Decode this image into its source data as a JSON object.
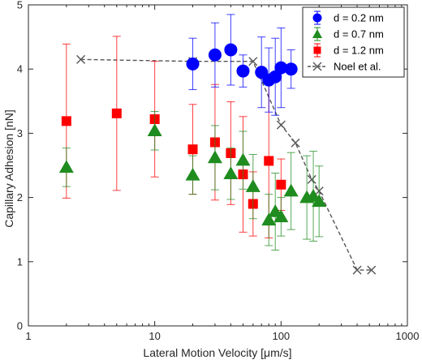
{
  "chart_data": {
    "type": "scatter",
    "xlabel": "Lateral Motion Velocity [μm/s]",
    "ylabel": "Capillary Adhesion [nN]",
    "xscale": "log",
    "xlim": [
      1,
      1000
    ],
    "ylim": [
      0,
      5
    ],
    "x_ticks": [
      1,
      10,
      100,
      1000
    ],
    "x_tick_labels": [
      "1",
      "10",
      "100",
      "1000"
    ],
    "y_ticks": [
      0,
      1,
      2,
      3,
      4,
      5
    ],
    "y_tick_labels": [
      "0",
      "1",
      "2",
      "3",
      "4",
      "5"
    ],
    "grid": false,
    "legend_position": "top-right",
    "series": [
      {
        "name": "d = 0.2 nm",
        "marker": "circle",
        "color": "#0000ff",
        "points": [
          {
            "x": 20,
            "y": 4.08,
            "err": 0.4
          },
          {
            "x": 30,
            "y": 4.22,
            "err": 0.5
          },
          {
            "x": 40,
            "y": 4.3,
            "err": 0.55
          },
          {
            "x": 50,
            "y": 3.97,
            "err": 0.25
          },
          {
            "x": 70,
            "y": 3.95,
            "err": 0.55
          },
          {
            "x": 80,
            "y": 3.83,
            "err": 0.5
          },
          {
            "x": 90,
            "y": 3.88,
            "err": 0.6
          },
          {
            "x": 100,
            "y": 4.02,
            "err": 0.62
          },
          {
            "x": 120,
            "y": 4.0,
            "err": 0.3
          }
        ]
      },
      {
        "name": "d = 0.7 nm",
        "marker": "triangle",
        "color": "#1f8c1f",
        "points": [
          {
            "x": 2,
            "y": 2.47,
            "err": 0.3
          },
          {
            "x": 10,
            "y": 3.04,
            "err": 0.3
          },
          {
            "x": 20,
            "y": 2.35,
            "err": 0.3
          },
          {
            "x": 30,
            "y": 2.62,
            "err": 0.5
          },
          {
            "x": 40,
            "y": 2.37,
            "err": 0.4
          },
          {
            "x": 50,
            "y": 2.58,
            "err": 0.45
          },
          {
            "x": 60,
            "y": 2.17,
            "err": 0.5
          },
          {
            "x": 80,
            "y": 1.65,
            "err": 0.4
          },
          {
            "x": 90,
            "y": 1.78,
            "err": 0.6
          },
          {
            "x": 100,
            "y": 1.7,
            "err": 0.3
          },
          {
            "x": 120,
            "y": 2.1,
            "err": 0.6
          },
          {
            "x": 160,
            "y": 2.0,
            "err": 0.65
          },
          {
            "x": 180,
            "y": 2.02,
            "err": 0.7
          },
          {
            "x": 200,
            "y": 1.94,
            "err": 0.55
          }
        ]
      },
      {
        "name": "d = 1.2 nm",
        "marker": "square",
        "color": "#ff0000",
        "points": [
          {
            "x": 2,
            "y": 3.19,
            "err": 1.2
          },
          {
            "x": 5,
            "y": 3.31,
            "err": 1.2
          },
          {
            "x": 10,
            "y": 3.22,
            "err": 0.9
          },
          {
            "x": 20,
            "y": 2.75,
            "err": 0.7
          },
          {
            "x": 30,
            "y": 2.86,
            "err": 0.9
          },
          {
            "x": 40,
            "y": 2.69,
            "err": 0.8
          },
          {
            "x": 50,
            "y": 2.36,
            "err": 0.9
          },
          {
            "x": 60,
            "y": 1.9,
            "err": 0.5
          },
          {
            "x": 80,
            "y": 2.57,
            "err": 1.2
          },
          {
            "x": 100,
            "y": 2.2,
            "err": 0.4
          }
        ]
      },
      {
        "name": "Noel et al.",
        "marker": "x",
        "color": "#555555",
        "line": "dashed",
        "points": [
          {
            "x": 2.6,
            "y": 4.15
          },
          {
            "x": 20,
            "y": 4.12
          },
          {
            "x": 60,
            "y": 4.12
          },
          {
            "x": 100,
            "y": 3.13
          },
          {
            "x": 130,
            "y": 2.85
          },
          {
            "x": 175,
            "y": 2.28
          },
          {
            "x": 200,
            "y": 2.1
          },
          {
            "x": 400,
            "y": 0.87
          },
          {
            "x": 520,
            "y": 0.87
          }
        ]
      }
    ]
  }
}
